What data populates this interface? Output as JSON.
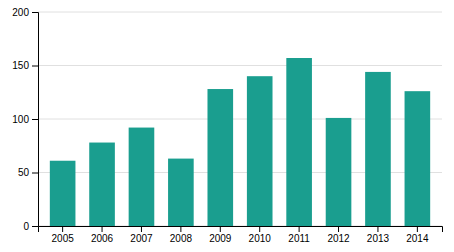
{
  "chart_data": {
    "type": "bar",
    "categories": [
      "2005",
      "2006",
      "2007",
      "2008",
      "2009",
      "2010",
      "2011",
      "2012",
      "2013",
      "2014"
    ],
    "values": [
      61,
      78,
      92,
      63,
      128,
      140,
      157,
      101,
      144,
      126
    ],
    "color": "#1a9e8f",
    "ylim": [
      0,
      200
    ],
    "yticks": [
      0,
      50,
      100,
      150,
      200
    ],
    "grid": true
  }
}
